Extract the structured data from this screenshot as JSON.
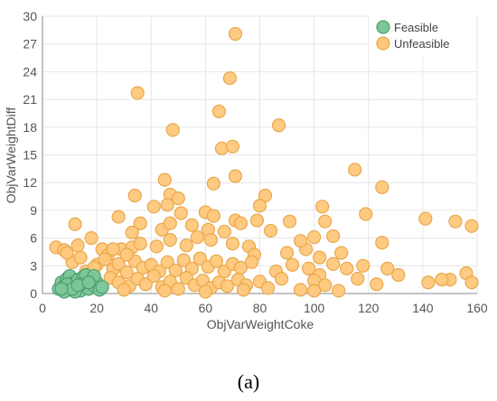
{
  "caption": "(a)",
  "colors": {
    "feasible_fill": "#7cc79a",
    "feasible_stroke": "#4e9e6c",
    "unfeasible_fill": "#ffc77a",
    "unfeasible_stroke": "#e8a84c",
    "grid": "#e6e6e6",
    "axis": "#888888"
  },
  "chart_data": {
    "type": "scatter",
    "title": "",
    "xlabel": "ObjVarWeightCoke",
    "ylabel": "ObjVarWeightDiff",
    "xlim": [
      0,
      160
    ],
    "ylim": [
      0,
      30
    ],
    "xticks": [
      "0",
      "20",
      "40",
      "60",
      "80",
      "100",
      "120",
      "140",
      "160"
    ],
    "yticks": [
      "0",
      "3",
      "6",
      "9",
      "12",
      "15",
      "18",
      "21",
      "24",
      "27",
      "30"
    ],
    "grid": true,
    "legend_position": "top-right",
    "series": [
      {
        "name": "Feasible",
        "points": [
          [
            6,
            0.5
          ],
          [
            7,
            1.2
          ],
          [
            8,
            0.8
          ],
          [
            9,
            1.6
          ],
          [
            10,
            0.4
          ],
          [
            10,
            1.9
          ],
          [
            11,
            1.1
          ],
          [
            12,
            0.6
          ],
          [
            13,
            1.5
          ],
          [
            14,
            0.3
          ],
          [
            15,
            1.8
          ],
          [
            15,
            0.9
          ],
          [
            16,
            1.3
          ],
          [
            17,
            0.5
          ],
          [
            18,
            1.6
          ],
          [
            19,
            0.8
          ],
          [
            20,
            1.2
          ],
          [
            21,
            0.4
          ],
          [
            22,
            0.7
          ],
          [
            8,
            0.2
          ],
          [
            12,
            0.2
          ],
          [
            16,
            2.0
          ],
          [
            9,
            1.0
          ],
          [
            14,
            1.0
          ],
          [
            19,
            1.9
          ],
          [
            11,
            0.5
          ],
          [
            7,
            0.5
          ],
          [
            13,
            0.9
          ],
          [
            17,
            1.2
          ]
        ]
      },
      {
        "name": "Unfeasible",
        "points": [
          [
            71,
            28.1
          ],
          [
            69,
            23.3
          ],
          [
            35,
            21.7
          ],
          [
            65,
            19.7
          ],
          [
            48,
            17.7
          ],
          [
            87,
            18.2
          ],
          [
            66,
            15.7
          ],
          [
            70,
            15.9
          ],
          [
            115,
            13.4
          ],
          [
            71,
            12.7
          ],
          [
            45,
            12.3
          ],
          [
            63,
            11.9
          ],
          [
            125,
            11.5
          ],
          [
            34,
            10.6
          ],
          [
            47,
            10.7
          ],
          [
            50,
            10.3
          ],
          [
            82,
            10.6
          ],
          [
            103,
            9.4
          ],
          [
            46,
            9.6
          ],
          [
            80,
            9.5
          ],
          [
            41,
            9.4
          ],
          [
            28,
            8.3
          ],
          [
            51,
            8.7
          ],
          [
            60,
            8.8
          ],
          [
            63,
            8.4
          ],
          [
            71,
            7.9
          ],
          [
            73,
            7.6
          ],
          [
            79,
            7.9
          ],
          [
            91,
            7.8
          ],
          [
            104,
            7.8
          ],
          [
            119,
            8.6
          ],
          [
            141,
            8.1
          ],
          [
            152,
            7.8
          ],
          [
            158,
            7.3
          ],
          [
            36,
            7.6
          ],
          [
            44,
            6.9
          ],
          [
            47,
            7.6
          ],
          [
            55,
            7.4
          ],
          [
            12,
            7.5
          ],
          [
            84,
            6.8
          ],
          [
            100,
            6.1
          ],
          [
            107,
            6.2
          ],
          [
            33,
            6.6
          ],
          [
            61,
            6.9
          ],
          [
            67,
            6.7
          ],
          [
            5,
            5.0
          ],
          [
            8,
            4.7
          ],
          [
            13,
            5.2
          ],
          [
            18,
            6.0
          ],
          [
            22,
            4.8
          ],
          [
            24,
            4.1
          ],
          [
            29,
            4.8
          ],
          [
            33,
            5.0
          ],
          [
            36,
            5.4
          ],
          [
            42,
            5.1
          ],
          [
            47,
            5.8
          ],
          [
            53,
            5.2
          ],
          [
            57,
            6.1
          ],
          [
            62,
            5.8
          ],
          [
            70,
            5.4
          ],
          [
            76,
            5.1
          ],
          [
            90,
            4.4
          ],
          [
            97,
            4.8
          ],
          [
            102,
            3.9
          ],
          [
            110,
            4.4
          ],
          [
            125,
            5.5
          ],
          [
            78,
            4.2
          ],
          [
            95,
            5.7
          ],
          [
            11,
            3.4
          ],
          [
            14,
            3.9
          ],
          [
            16,
            2.4
          ],
          [
            20,
            3.1
          ],
          [
            23,
            3.7
          ],
          [
            26,
            2.6
          ],
          [
            28,
            3.2
          ],
          [
            31,
            2.3
          ],
          [
            34,
            3.5
          ],
          [
            37,
            2.8
          ],
          [
            40,
            3.1
          ],
          [
            43,
            2.4
          ],
          [
            46,
            3.4
          ],
          [
            49,
            2.5
          ],
          [
            52,
            3.6
          ],
          [
            55,
            2.7
          ],
          [
            58,
            3.8
          ],
          [
            61,
            2.9
          ],
          [
            64,
            3.5
          ],
          [
            67,
            2.4
          ],
          [
            70,
            3.2
          ],
          [
            73,
            2.8
          ],
          [
            77,
            3.4
          ],
          [
            86,
            2.4
          ],
          [
            92,
            3.1
          ],
          [
            98,
            2.7
          ],
          [
            102,
            2.0
          ],
          [
            107,
            3.2
          ],
          [
            112,
            2.7
          ],
          [
            118,
            3.0
          ],
          [
            127,
            2.7
          ],
          [
            131,
            2.0
          ],
          [
            150,
            1.5
          ],
          [
            156,
            2.2
          ],
          [
            25,
            1.7
          ],
          [
            28,
            1.2
          ],
          [
            32,
            0.8
          ],
          [
            35,
            1.6
          ],
          [
            38,
            1.0
          ],
          [
            41,
            1.9
          ],
          [
            44,
            0.7
          ],
          [
            47,
            1.3
          ],
          [
            50,
            0.5
          ],
          [
            53,
            1.7
          ],
          [
            56,
            0.9
          ],
          [
            59,
            1.4
          ],
          [
            62,
            0.6
          ],
          [
            65,
            1.2
          ],
          [
            68,
            0.8
          ],
          [
            72,
            1.5
          ],
          [
            75,
            0.9
          ],
          [
            80,
            1.3
          ],
          [
            83,
            0.6
          ],
          [
            88,
            1.6
          ],
          [
            95,
            0.4
          ],
          [
            100,
            1.4
          ],
          [
            104,
            0.9
          ],
          [
            109,
            0.3
          ],
          [
            116,
            1.6
          ],
          [
            123,
            1.0
          ],
          [
            142,
            1.2
          ],
          [
            147,
            1.5
          ],
          [
            158,
            1.2
          ],
          [
            30,
            0.4
          ],
          [
            45,
            0.3
          ],
          [
            60,
            0.2
          ],
          [
            74,
            0.4
          ],
          [
            100,
            0.3
          ],
          [
            26,
            4.8
          ],
          [
            31,
            4.2
          ],
          [
            9,
            4.4
          ],
          [
            19,
            2.8
          ]
        ]
      }
    ]
  }
}
